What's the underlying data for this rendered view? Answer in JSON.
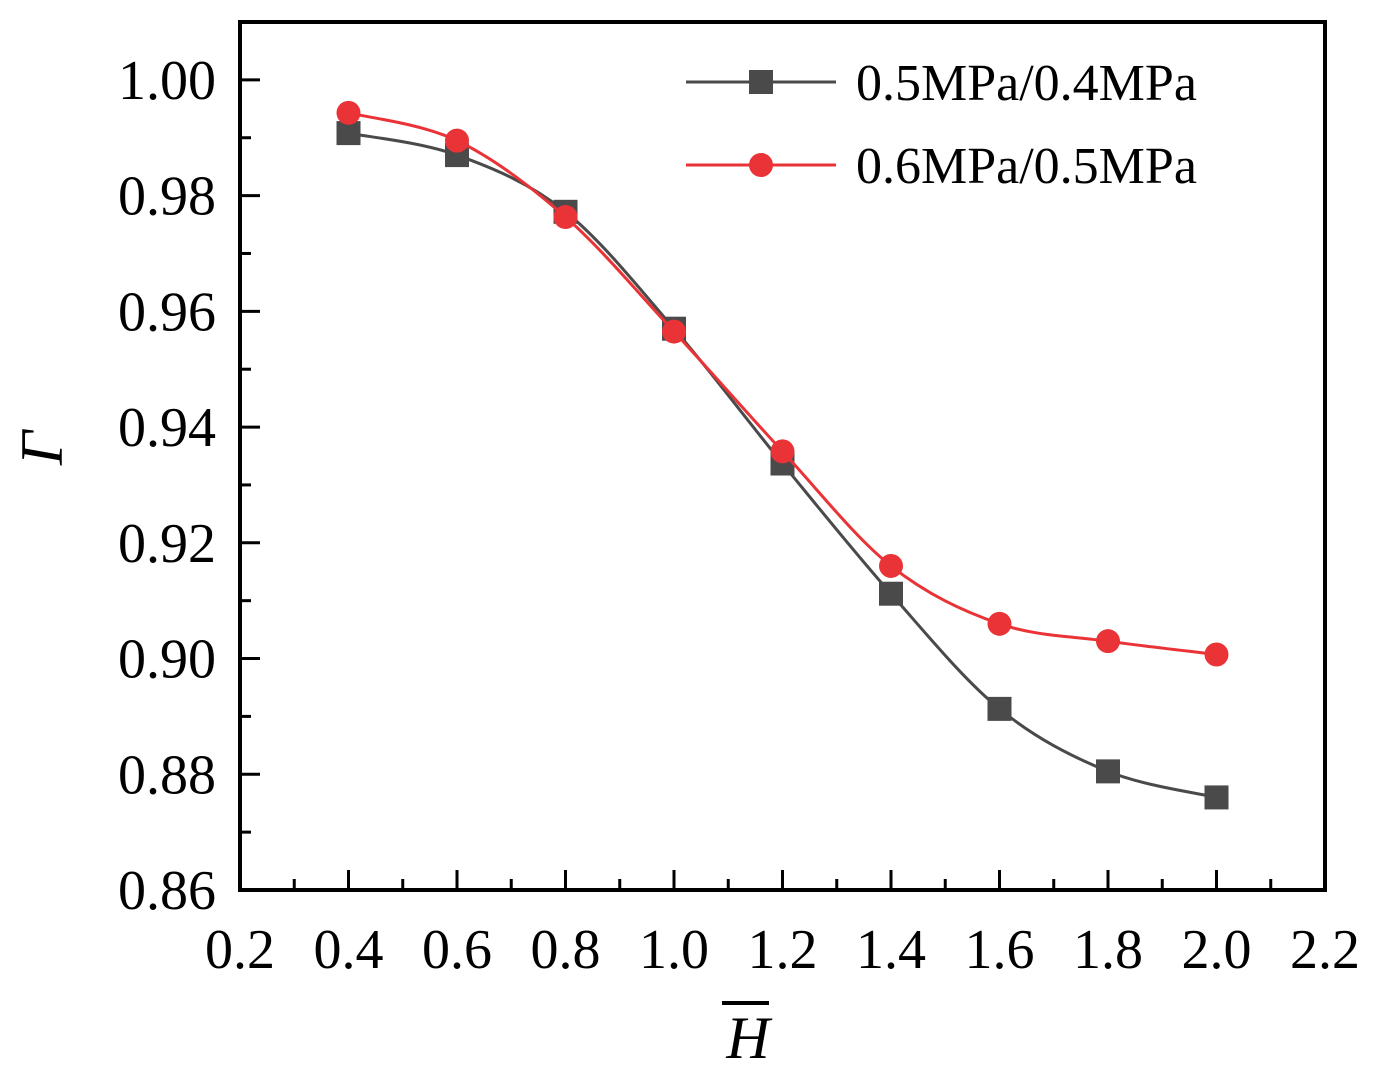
{
  "chart_data": {
    "type": "line",
    "title": "",
    "xlabel": "H",
    "xlabel_overline": true,
    "ylabel": "Γ",
    "xlim": [
      0.2,
      2.2
    ],
    "ylim": [
      0.86,
      1.01
    ],
    "xticks": [
      "0.2",
      "0.4",
      "0.6",
      "0.8",
      "1.0",
      "1.2",
      "1.4",
      "1.6",
      "1.8",
      "2.0",
      "2.2"
    ],
    "yticks": [
      "0.86",
      "0.88",
      "0.90",
      "0.92",
      "0.94",
      "0.96",
      "0.98",
      "1.00"
    ],
    "grid": false,
    "legend_position": "top-right",
    "x": [
      0.4,
      0.6,
      0.8,
      1.0,
      1.2,
      1.4,
      1.6,
      1.8,
      2.0
    ],
    "series": [
      {
        "name": "0.5MPa/0.4MPa",
        "marker": "square",
        "color": "#4a4a4a",
        "values": [
          0.9908,
          0.987,
          0.9772,
          0.957,
          0.9337,
          0.9112,
          0.8913,
          0.8805,
          0.876
        ]
      },
      {
        "name": "0.6MPa/0.5MPa",
        "marker": "circle",
        "color": "#ea3337",
        "values": [
          0.9943,
          0.9895,
          0.9763,
          0.9565,
          0.9358,
          0.916,
          0.906,
          0.903,
          0.9007
        ]
      }
    ]
  }
}
